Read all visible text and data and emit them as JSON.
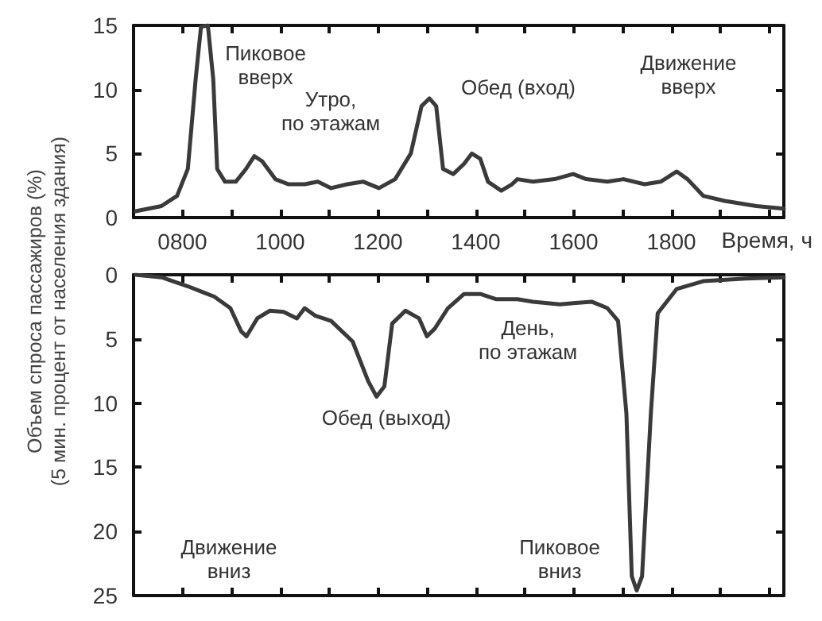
{
  "chart_data": [
    {
      "type": "line",
      "xlabel": "Время, ч",
      "ylabel": "Объем спроса пассажиров (%)\n(5 мин. процент от населения здания)",
      "color": "#3a3a3a",
      "x": [
        704,
        757,
        789,
        811,
        827,
        838,
        852,
        863,
        871,
        887,
        909,
        930,
        947,
        963,
        990,
        1017,
        1050,
        1077,
        1104,
        1137,
        1170,
        1202,
        1235,
        1267,
        1289,
        1305,
        1319,
        1333,
        1354,
        1376,
        1392,
        1409,
        1425,
        1452,
        1474,
        1485,
        1517,
        1561,
        1599,
        1626,
        1669,
        1702,
        1745,
        1778,
        1811,
        1833,
        1865,
        1909,
        1974,
        2030
      ],
      "values": [
        0.5,
        0.9,
        1.7,
        3.8,
        10.8,
        14.9,
        15,
        10.8,
        3.8,
        2.8,
        2.8,
        3.8,
        4.8,
        4.4,
        3.0,
        2.6,
        2.6,
        2.8,
        2.3,
        2.6,
        2.8,
        2.3,
        3.0,
        5.0,
        8.7,
        9.3,
        8.7,
        3.8,
        3.4,
        4.2,
        5.0,
        4.6,
        2.8,
        2.1,
        2.6,
        3.0,
        2.8,
        3.0,
        3.4,
        3.0,
        2.8,
        3.0,
        2.6,
        2.8,
        3.6,
        3.0,
        1.7,
        1.3,
        0.9,
        0.7
      ],
      "xlim": [
        700,
        2030
      ],
      "xticks": [
        {
          "value": 800,
          "label": "0800"
        },
        {
          "value": 900,
          "label": null
        },
        {
          "value": 1000,
          "label": "1000"
        },
        {
          "value": 1100,
          "label": null
        },
        {
          "value": 1200,
          "label": "1200"
        },
        {
          "value": 1300,
          "label": null
        },
        {
          "value": 1400,
          "label": "1400"
        },
        {
          "value": 1500,
          "label": null
        },
        {
          "value": 1600,
          "label": "1600"
        },
        {
          "value": 1700,
          "label": null
        },
        {
          "value": 1800,
          "label": "1800"
        },
        {
          "value": 1900,
          "label": null
        },
        {
          "value": 2000,
          "label": null
        }
      ],
      "ylim": [
        0,
        15
      ],
      "yticks": [
        0,
        5,
        10,
        15
      ],
      "annotations": [
        "Пиковое\nвверх",
        "Утро,\nпо этажам",
        "Обед (вход)",
        "Движение\nвверх"
      ]
    },
    {
      "type": "line",
      "color": "#3a3a3a",
      "tick_labels": "y",
      "x": [
        704,
        757,
        811,
        865,
        898,
        920,
        931,
        953,
        979,
        1007,
        1034,
        1050,
        1072,
        1104,
        1148,
        1180,
        1197,
        1213,
        1229,
        1256,
        1284,
        1300,
        1316,
        1343,
        1376,
        1409,
        1441,
        1485,
        1517,
        1572,
        1604,
        1637,
        1669,
        1691,
        1708,
        1719,
        1729,
        1740,
        1758,
        1772,
        1811,
        1865,
        1952,
        2030
      ],
      "values": [
        0,
        0.2,
        0.9,
        1.7,
        2.6,
        4.4,
        4.8,
        3.4,
        2.8,
        2.9,
        3.4,
        2.6,
        3.2,
        3.6,
        5.2,
        8.3,
        9.5,
        8.7,
        3.8,
        2.8,
        3.4,
        4.8,
        4.2,
        2.6,
        1.5,
        1.5,
        1.9,
        1.9,
        2.1,
        2.3,
        2.2,
        2.1,
        2.6,
        3.6,
        10.8,
        23.5,
        24.6,
        23.5,
        10.8,
        3.0,
        1.1,
        0.5,
        0.3,
        0.2
      ],
      "xlim": [
        700,
        2030
      ],
      "xticks": [
        {
          "value": 800,
          "label": null
        },
        {
          "value": 900,
          "label": null
        },
        {
          "value": 1000,
          "label": null
        },
        {
          "value": 1100,
          "label": null
        },
        {
          "value": 1200,
          "label": null
        },
        {
          "value": 1300,
          "label": null
        },
        {
          "value": 1400,
          "label": null
        },
        {
          "value": 1500,
          "label": null
        },
        {
          "value": 1600,
          "label": null
        },
        {
          "value": 1700,
          "label": null
        },
        {
          "value": 1800,
          "label": null
        },
        {
          "value": 1900,
          "label": null
        },
        {
          "value": 2000,
          "label": null
        }
      ],
      "ylim": [
        25,
        0
      ],
      "yticks": [
        0,
        5,
        10,
        15,
        20,
        25
      ],
      "annotations": [
        "Обед (выход)",
        "День,\nпо этажам",
        "Движение\nвниз",
        "Пиковое\nвниз"
      ]
    }
  ]
}
